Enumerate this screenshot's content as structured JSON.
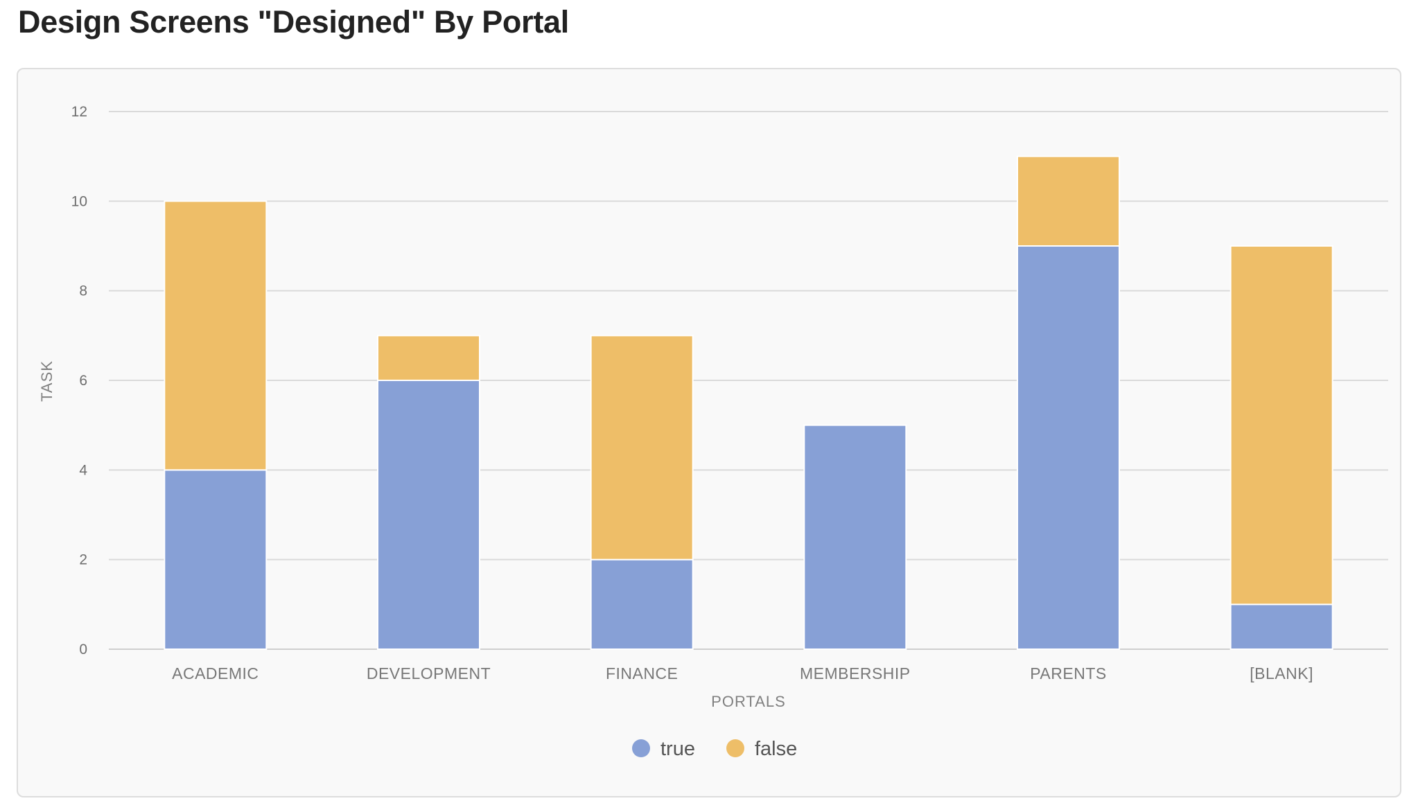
{
  "page": {
    "title": "Design Screens \"Designed\" By Portal"
  },
  "colors": {
    "true": "#87a0d6",
    "false": "#eebe68",
    "grid": "#dadada",
    "axis": "#cfcfcf"
  },
  "chart_data": {
    "type": "bar",
    "stacked": true,
    "title": "Design Screens \"Designed\" By Portal",
    "xlabel": "PORTALS",
    "ylabel": "TASK",
    "ylim": [
      0,
      12
    ],
    "yticks": [
      0,
      2,
      4,
      6,
      8,
      10,
      12
    ],
    "grid": true,
    "legend_position": "bottom-center",
    "categories": [
      "ACADEMIC",
      "DEVELOPMENT",
      "FINANCE",
      "MEMBERSHIP",
      "PARENTS",
      "[BLANK]"
    ],
    "series": [
      {
        "name": "true",
        "values": [
          4,
          6,
          2,
          5,
          9,
          1
        ]
      },
      {
        "name": "false",
        "values": [
          6,
          1,
          5,
          0,
          2,
          8
        ]
      }
    ]
  }
}
